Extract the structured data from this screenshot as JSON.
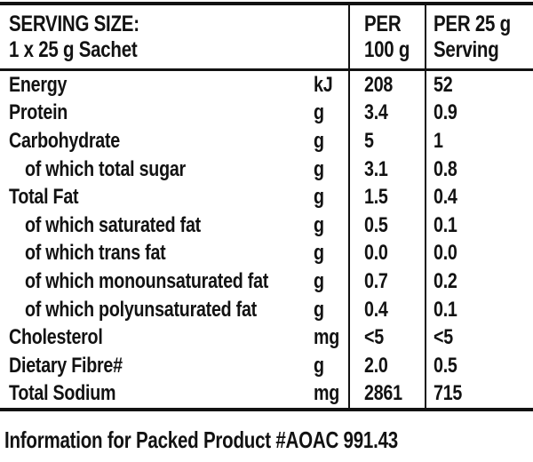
{
  "colors": {
    "text": "#121212",
    "rule": "#121212",
    "background": "#ffffff"
  },
  "table": {
    "header": {
      "serving_size_line1": "SERVING SIZE:",
      "serving_size_line2": "1 x 25 g Sachet",
      "per_100_line1": "PER",
      "per_100_line2": "100 g",
      "per_25_line1": "PER 25 g",
      "per_25_line2": "Serving"
    },
    "rows": [
      {
        "label": "Energy",
        "unit": "kJ",
        "per100": "208",
        "per25": "52"
      },
      {
        "label": "Protein",
        "unit": "g",
        "per100": "3.4",
        "per25": "0.9"
      },
      {
        "label": "Carbohydrate",
        "unit": "g",
        "per100": "5",
        "per25": "1"
      },
      {
        "label": "of which total sugar",
        "unit": "g",
        "per100": "3.1",
        "per25": "0.8"
      },
      {
        "label": "Total Fat",
        "unit": "g",
        "per100": "1.5",
        "per25": "0.4"
      },
      {
        "label": "of which saturated fat",
        "unit": "g",
        "per100": "0.5",
        "per25": "0.1"
      },
      {
        "label": "of which trans fat",
        "unit": "g",
        "per100": "0.0",
        "per25": "0.0"
      },
      {
        "label": "of which monounsaturated fat",
        "unit": "g",
        "per100": "0.7",
        "per25": "0.2"
      },
      {
        "label": "of which polyunsaturated fat",
        "unit": "g",
        "per100": "0.4",
        "per25": "0.1"
      },
      {
        "label": "Cholesterol",
        "unit": "mg",
        "per100": "<5",
        "per25": "<5"
      },
      {
        "label": "Dietary Fibre#",
        "unit": "g",
        "per100": "2.0",
        "per25": "0.5"
      },
      {
        "label": "Total Sodium",
        "unit": "mg",
        "per100": "2861",
        "per25": "715"
      }
    ]
  },
  "footer": {
    "note": "Information for Packed Product #AOAC 991.43"
  }
}
